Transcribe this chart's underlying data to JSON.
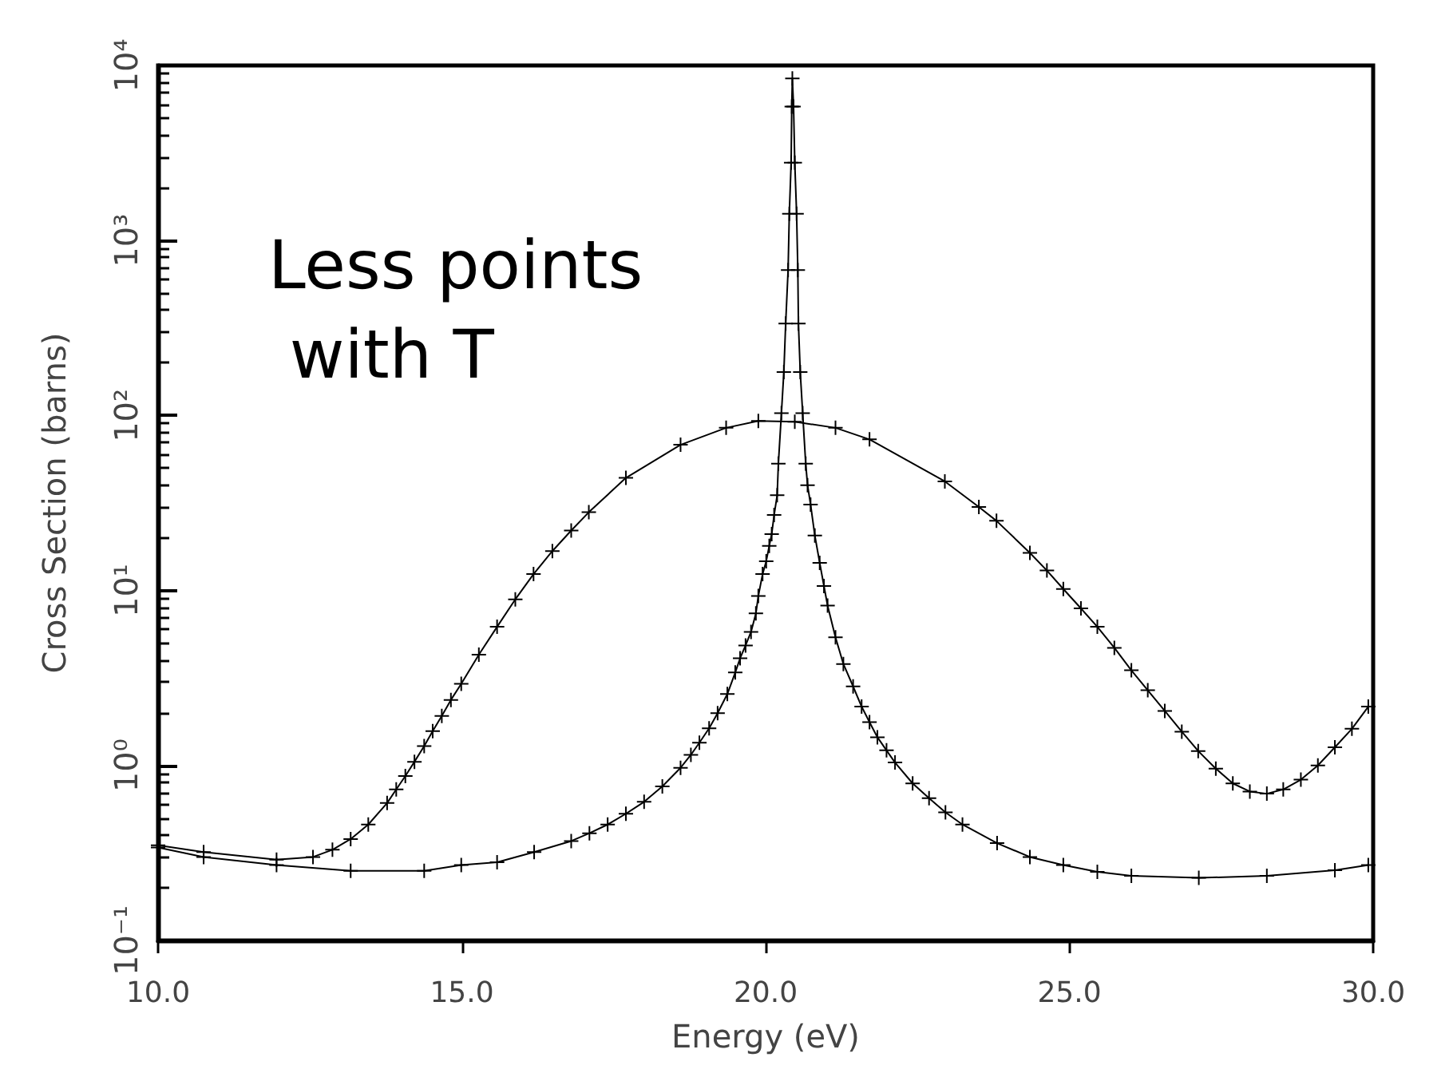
{
  "chart_data": {
    "type": "line",
    "xlabel": "Energy (eV)",
    "ylabel": "Cross Section (barns)",
    "log": "y",
    "grid": false,
    "marker": "cross",
    "line_style": "solid",
    "xlim": [
      10,
      30
    ],
    "xticks": [
      {
        "value": 10,
        "label": "10.0"
      },
      {
        "value": 15,
        "label": "15.0"
      },
      {
        "value": 20,
        "label": "20.0"
      },
      {
        "value": 25,
        "label": "25.0"
      },
      {
        "value": 30,
        "label": "30.0"
      }
    ],
    "ylim": [
      0.1,
      10000
    ],
    "yticks": [
      {
        "value": 0.1,
        "label": "10⁻¹"
      },
      {
        "value": 1,
        "label": "10⁰"
      },
      {
        "value": 10,
        "label": "10¹"
      },
      {
        "value": 100,
        "label": "10²"
      },
      {
        "value": 1000,
        "label": "10³"
      },
      {
        "value": 10000,
        "label": "10⁴"
      }
    ],
    "annotations": [
      "Less points with T"
    ],
    "series": [
      {
        "color": "#000000",
        "x": [
          10.0,
          10.75,
          11.95,
          12.55,
          12.87,
          13.17,
          13.46,
          13.77,
          13.92,
          14.07,
          14.22,
          14.38,
          14.52,
          14.67,
          14.82,
          14.99,
          15.28,
          15.58,
          15.88,
          16.18,
          16.49,
          16.8,
          17.09,
          17.7,
          18.6,
          19.35,
          19.88,
          20.48,
          21.15,
          21.71,
          22.95,
          23.51,
          23.8,
          24.35,
          24.63,
          24.9,
          25.19,
          25.46,
          25.74,
          26.02,
          26.29,
          26.57,
          26.85,
          27.12,
          27.41,
          27.69,
          27.97,
          28.25,
          28.52,
          28.81,
          29.09,
          29.37,
          29.65,
          29.92
        ],
        "values": [
          0.35,
          0.32,
          0.29,
          0.3,
          0.33,
          0.38,
          0.46,
          0.61,
          0.73,
          0.87,
          1.05,
          1.29,
          1.57,
          1.92,
          2.37,
          2.93,
          4.3,
          6.2,
          8.9,
          12.4,
          16.8,
          22,
          28,
          44,
          68,
          85,
          93,
          92,
          85,
          73,
          42,
          30,
          25,
          16.4,
          13,
          10.2,
          7.9,
          6.2,
          4.7,
          3.5,
          2.69,
          2.05,
          1.56,
          1.21,
          0.96,
          0.79,
          0.71,
          0.69,
          0.73,
          0.83,
          1.0,
          1.27,
          1.62,
          2.17
        ]
      },
      {
        "color": "#000000",
        "x": [
          10.0,
          10.75,
          11.95,
          13.17,
          14.38,
          14.99,
          15.58,
          16.19,
          16.8,
          17.1,
          17.4,
          17.7,
          18.0,
          18.3,
          18.6,
          18.77,
          18.91,
          19.07,
          19.21,
          19.37,
          19.5,
          19.58,
          19.67,
          19.76,
          19.84,
          19.88,
          19.95,
          20.01,
          20.06,
          20.1,
          20.14,
          20.19,
          20.21,
          20.26,
          20.3,
          20.33,
          20.37,
          20.39,
          20.42,
          20.43,
          20.44,
          20.46,
          20.48,
          20.51,
          20.53,
          20.54,
          20.57,
          20.61,
          20.66,
          20.69,
          20.74,
          20.81,
          20.89,
          20.96,
          21.02,
          21.15,
          21.28,
          21.44,
          21.58,
          21.71,
          21.84,
          21.99,
          22.13,
          22.42,
          22.69,
          22.96,
          23.24,
          23.81,
          24.35,
          24.9,
          25.46,
          26.02,
          27.13,
          28.25,
          29.37,
          29.92
        ],
        "values": [
          0.34,
          0.3,
          0.27,
          0.25,
          0.25,
          0.27,
          0.28,
          0.32,
          0.37,
          0.41,
          0.46,
          0.53,
          0.62,
          0.76,
          0.97,
          1.15,
          1.35,
          1.63,
          1.99,
          2.56,
          3.4,
          4.1,
          4.85,
          5.8,
          7.4,
          9.3,
          12.4,
          14.7,
          18,
          21,
          27,
          35,
          53,
          103,
          177,
          335,
          678,
          1420,
          2780,
          5820,
          8430,
          5820,
          2780,
          1420,
          678,
          335,
          177,
          103,
          53,
          40,
          31,
          20.6,
          14.4,
          10.6,
          8.2,
          5.4,
          3.8,
          2.83,
          2.17,
          1.77,
          1.45,
          1.22,
          1.04,
          0.79,
          0.65,
          0.54,
          0.46,
          0.36,
          0.3,
          0.27,
          0.247,
          0.234,
          0.228,
          0.234,
          0.252,
          0.27
        ]
      }
    ]
  }
}
